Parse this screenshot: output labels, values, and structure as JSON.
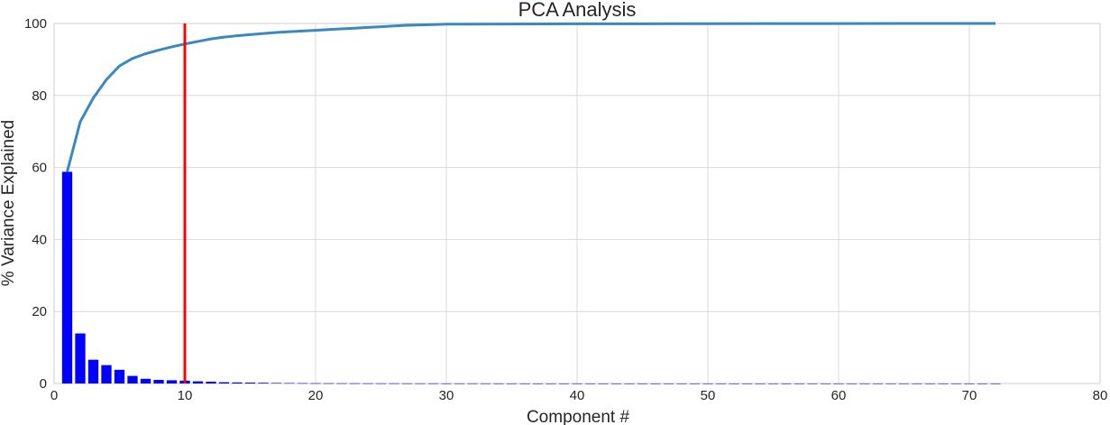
{
  "chart_data": {
    "type": "bar+line",
    "title": "PCA Analysis",
    "xlabel": "Component #",
    "ylabel": "% Variance Explained",
    "xlim": [
      0,
      80
    ],
    "ylim": [
      0,
      100
    ],
    "xticks": [
      "0",
      "10",
      "20",
      "30",
      "40",
      "50",
      "60",
      "70",
      "80"
    ],
    "yticks": [
      "0",
      "20",
      "40",
      "60",
      "80",
      "100"
    ],
    "grid": true,
    "bar_series": {
      "color": "#0000ff",
      "x": [
        1,
        2,
        3,
        4,
        5,
        6,
        7,
        8,
        9,
        10,
        11,
        12,
        13,
        14,
        15,
        16,
        17,
        18,
        19,
        20,
        21,
        22,
        23,
        24,
        25,
        26,
        27,
        28,
        29,
        30,
        31,
        32,
        33,
        34,
        35,
        36,
        37,
        38,
        39,
        40,
        41,
        42,
        43,
        44,
        45,
        46,
        47,
        48,
        49,
        50,
        51,
        52,
        53,
        54,
        55,
        56,
        57,
        58,
        59,
        60,
        61,
        62,
        63,
        64,
        65,
        66,
        67,
        68,
        69,
        70,
        71,
        72
      ],
      "values": [
        58.8,
        13.9,
        6.6,
        5.1,
        3.8,
        2.1,
        1.3,
        1.0,
        0.9,
        0.8,
        0.6,
        0.5,
        0.35,
        0.3,
        0.25,
        0.2,
        0.15,
        0.12,
        0.1,
        0.08,
        0.07,
        0.06,
        0.05,
        0.05,
        0.04,
        0.04,
        0.03,
        0.03,
        0.03,
        0.02,
        0.02,
        0.02,
        0.02,
        0.02,
        0.01,
        0.01,
        0.01,
        0.01,
        0.01,
        0.01,
        0.01,
        0.01,
        0.01,
        0.01,
        0.01,
        0.01,
        0.01,
        0.01,
        0.01,
        0.01,
        0.01,
        0.01,
        0.01,
        0.01,
        0.01,
        0.01,
        0.01,
        0.01,
        0.01,
        0.01,
        0.01,
        0.01,
        0.01,
        0.01,
        0.01,
        0.01,
        0.01,
        0.01,
        0.01,
        0.01,
        0.01,
        0.01
      ]
    },
    "line_series": {
      "color": "#3a88c0",
      "x": [
        1,
        2,
        3,
        4,
        5,
        6,
        7,
        8,
        9,
        10,
        11,
        12,
        13,
        14,
        15,
        16,
        17,
        18,
        19,
        20,
        21,
        22,
        23,
        24,
        25,
        26,
        27,
        28,
        29,
        30,
        35,
        40,
        45,
        50,
        55,
        60,
        65,
        70,
        72
      ],
      "values": [
        58.8,
        72.7,
        79.3,
        84.4,
        88.2,
        90.3,
        91.6,
        92.6,
        93.5,
        94.3,
        95.0,
        95.7,
        96.2,
        96.6,
        96.9,
        97.2,
        97.5,
        97.7,
        97.9,
        98.1,
        98.3,
        98.5,
        98.7,
        98.9,
        99.1,
        99.3,
        99.5,
        99.6,
        99.7,
        99.8,
        99.85,
        99.9,
        99.92,
        99.95,
        99.97,
        99.98,
        99.99,
        100,
        100
      ]
    },
    "vline": {
      "x": 10,
      "color": "#ff0000"
    }
  }
}
